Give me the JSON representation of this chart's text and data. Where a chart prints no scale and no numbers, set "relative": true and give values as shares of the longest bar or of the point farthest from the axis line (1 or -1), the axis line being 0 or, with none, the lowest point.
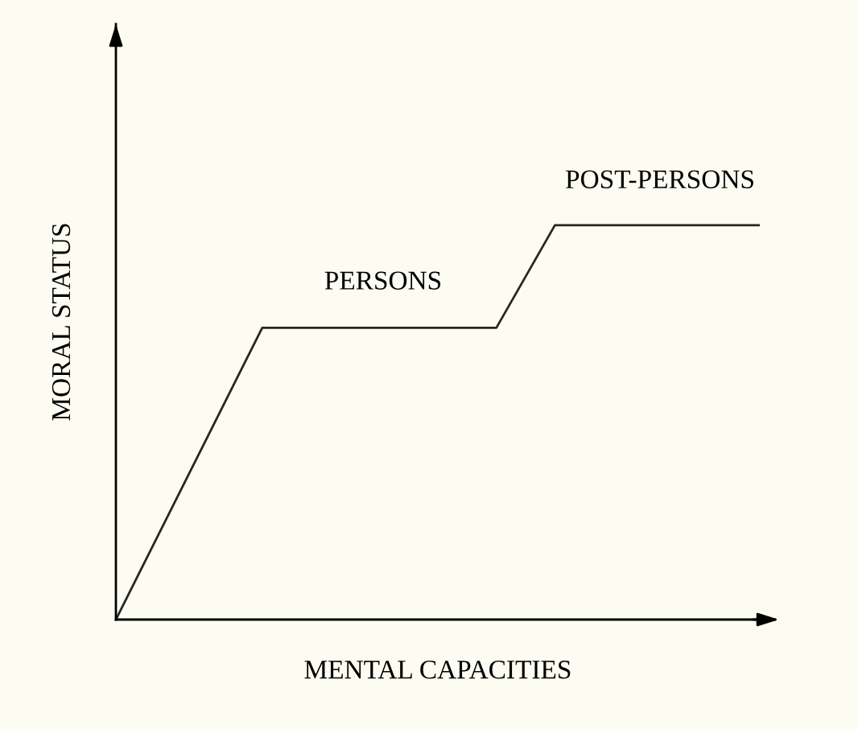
{
  "chart_data": {
    "type": "line",
    "relative": true,
    "xlabel": "MENTAL CAPACITIES",
    "ylabel": "MORAL STATUS",
    "categories": [
      null,
      null,
      null,
      null,
      null,
      null,
      null,
      null,
      null,
      null,
      null,
      null,
      null,
      null,
      null,
      null,
      null,
      null,
      null,
      null,
      null,
      null,
      null
    ],
    "series": [
      {
        "color": "#262626",
        "values": [
          0,
          0.148,
          0.296,
          0.444,
          0.592,
          0.74,
          0.74,
          0.74,
          0.74,
          0.74,
          0.74,
          0.74,
          0.74,
          0.74,
          0.87,
          1.0,
          1.0,
          1.0,
          1.0,
          1.0,
          1.0,
          1.0,
          1.0
        ]
      }
    ],
    "annotations": [
      "PERSONS",
      "POST-PERSONS"
    ]
  }
}
